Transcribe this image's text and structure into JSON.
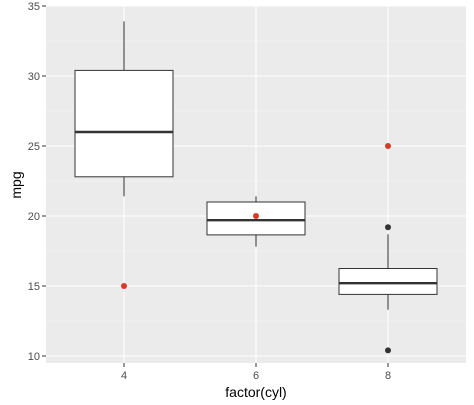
{
  "chart_data": {
    "type": "boxplot",
    "xlabel": "factor(cyl)",
    "ylabel": "mpg",
    "categories": [
      "4",
      "6",
      "8"
    ],
    "ylim": [
      9.5,
      35
    ],
    "y_ticks": [
      10,
      15,
      20,
      25,
      30,
      35
    ],
    "grid": true,
    "boxes": [
      {
        "category": "4",
        "whisker_low": 21.4,
        "q1": 22.8,
        "median": 26.0,
        "q3": 30.4,
        "whisker_high": 33.9,
        "outliers": []
      },
      {
        "category": "6",
        "whisker_low": 17.8,
        "q1": 18.65,
        "median": 19.7,
        "q3": 21.0,
        "whisker_high": 21.4,
        "outliers": []
      },
      {
        "category": "8",
        "whisker_low": 13.3,
        "q1": 14.4,
        "median": 15.2,
        "q3": 16.25,
        "whisker_high": 18.7,
        "outliers": [
          10.4,
          19.2
        ]
      }
    ],
    "highlight_points": [
      {
        "x": "4",
        "y": 15
      },
      {
        "x": "6",
        "y": 20
      },
      {
        "x": "8",
        "y": 25
      }
    ],
    "colors": {
      "panel": "#ebebeb",
      "outlier": "#333333",
      "highlight": "#d93a26"
    }
  }
}
